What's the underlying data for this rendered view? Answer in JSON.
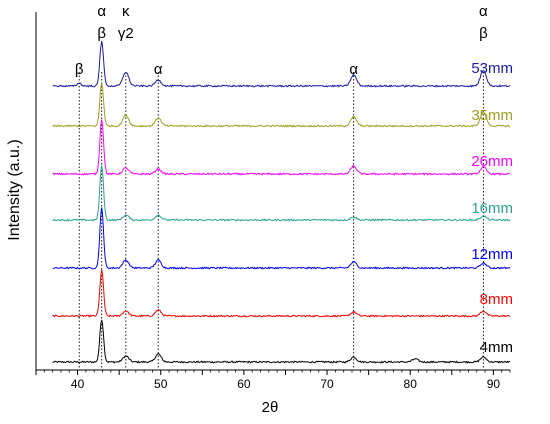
{
  "chart_data": {
    "type": "line",
    "title": "",
    "xlabel": "2θ",
    "ylabel": "Intensity (a.u.)",
    "xlim": [
      35,
      92
    ],
    "x_ticks": [
      40,
      50,
      60,
      70,
      80,
      90
    ],
    "y_ticks_shown": false,
    "grid": false,
    "legend": "labels at right end of each trace",
    "reference_lines": [
      {
        "x": 40.2,
        "style": "dotted",
        "labels": [
          "β"
        ]
      },
      {
        "x": 42.9,
        "style": "dotted",
        "labels": [
          "α",
          "β"
        ]
      },
      {
        "x": 45.8,
        "style": "dotted",
        "labels": [
          "κ",
          "γ2"
        ]
      },
      {
        "x": 49.7,
        "style": "dotted",
        "labels": [
          "α"
        ]
      },
      {
        "x": 73.2,
        "style": "dotted",
        "labels": [
          "α"
        ]
      },
      {
        "x": 88.8,
        "style": "dotted",
        "labels": [
          "α",
          "β"
        ]
      }
    ],
    "series": [
      {
        "name": "4mm",
        "color": "#000000",
        "peaks": [
          {
            "x": 42.9,
            "height": 43
          },
          {
            "x": 45.8,
            "height": 6
          },
          {
            "x": 49.7,
            "height": 8
          },
          {
            "x": 73.2,
            "height": 5
          },
          {
            "x": 80.6,
            "height": 3
          },
          {
            "x": 88.8,
            "height": 5
          }
        ]
      },
      {
        "name": "8mm",
        "color": "#ff0000",
        "peaks": [
          {
            "x": 42.9,
            "height": 46
          },
          {
            "x": 45.8,
            "height": 5
          },
          {
            "x": 49.7,
            "height": 6
          },
          {
            "x": 73.2,
            "height": 4
          },
          {
            "x": 88.8,
            "height": 5
          }
        ]
      },
      {
        "name": "12mm",
        "color": "#0000ff",
        "peaks": [
          {
            "x": 42.9,
            "height": 60
          },
          {
            "x": 45.8,
            "height": 8
          },
          {
            "x": 49.7,
            "height": 8
          },
          {
            "x": 73.2,
            "height": 6
          },
          {
            "x": 88.8,
            "height": 5
          }
        ]
      },
      {
        "name": "16mm",
        "color": "#2aa39a",
        "peaks": [
          {
            "x": 42.9,
            "height": 55
          },
          {
            "x": 45.8,
            "height": 5
          },
          {
            "x": 49.7,
            "height": 5
          },
          {
            "x": 73.2,
            "height": 3
          },
          {
            "x": 88.8,
            "height": 4
          }
        ]
      },
      {
        "name": "26mm",
        "color": "#ff00ff",
        "peaks": [
          {
            "x": 42.9,
            "height": 55
          },
          {
            "x": 45.8,
            "height": 6
          },
          {
            "x": 49.7,
            "height": 5
          },
          {
            "x": 73.2,
            "height": 8
          },
          {
            "x": 88.8,
            "height": 7
          }
        ]
      },
      {
        "name": "35mm",
        "color": "#a0a020",
        "peaks": [
          {
            "x": 42.9,
            "height": 43
          },
          {
            "x": 45.8,
            "height": 11
          },
          {
            "x": 49.7,
            "height": 8
          },
          {
            "x": 73.2,
            "height": 9
          },
          {
            "x": 88.8,
            "height": 14
          }
        ]
      },
      {
        "name": "53mm",
        "color": "#1a1aa0",
        "peaks": [
          {
            "x": 40.2,
            "height": 3
          },
          {
            "x": 42.9,
            "height": 45
          },
          {
            "x": 45.8,
            "height": 14
          },
          {
            "x": 49.7,
            "height": 6
          },
          {
            "x": 73.2,
            "height": 11
          },
          {
            "x": 88.8,
            "height": 16
          }
        ]
      }
    ]
  }
}
